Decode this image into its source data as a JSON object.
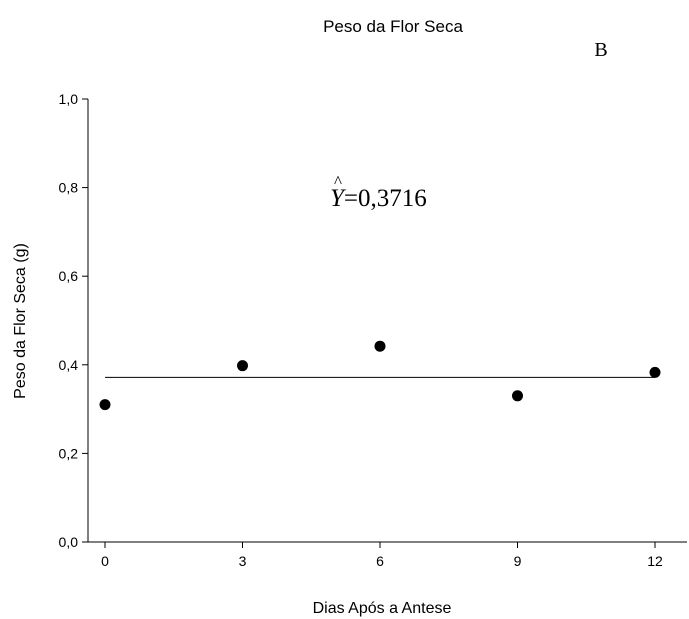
{
  "chart_data": {
    "type": "scatter",
    "title": "Peso da Flor Seca",
    "panel_label": "B",
    "xlabel": "Dias Após a Antese",
    "ylabel": "Peso da Flor Seca (g)",
    "xlim": [
      -1,
      14
    ],
    "ylim": [
      0,
      1.0
    ],
    "x_ticks": [
      0,
      3,
      6,
      9,
      12
    ],
    "x_tick_labels": [
      "0",
      "3",
      "6",
      "9",
      "12"
    ],
    "y_ticks": [
      0,
      0.2,
      0.4,
      0.6,
      0.8,
      1.0
    ],
    "y_tick_labels": [
      "0,0",
      "0,2",
      "0,4",
      "0,6",
      "0,8",
      "1,0"
    ],
    "series": [
      {
        "x": [
          0,
          3,
          6,
          9,
          12
        ],
        "y": [
          0.31,
          0.398,
          0.442,
          0.33,
          0.383
        ]
      }
    ],
    "fit_line": {
      "y": 0.3716,
      "x_range": [
        0,
        12
      ]
    },
    "equation": {
      "lhs": "Y",
      "rhs": "=0,3716"
    },
    "grid": false,
    "colors": {
      "marker": "#000000",
      "line": "#000000",
      "axis": "#000000"
    }
  }
}
